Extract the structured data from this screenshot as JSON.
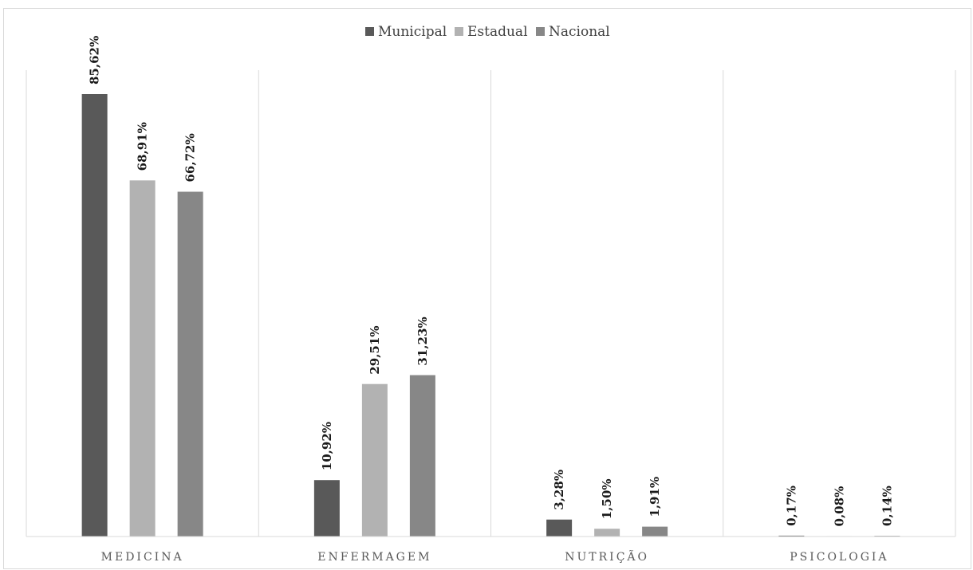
{
  "chart_data": {
    "type": "bar",
    "title": "",
    "xlabel": "",
    "ylabel": "",
    "ylim": [
      0,
      90
    ],
    "grid": false,
    "legend_position": "top",
    "categories": [
      "MEDICINA",
      "ENFERMAGEM",
      "NUTRIÇÃO",
      "PSICOLOGIA"
    ],
    "series": [
      {
        "name": "Municipal",
        "color": "#595959",
        "values": [
          85.62,
          10.92,
          3.28,
          0.17
        ],
        "labels": [
          "85,62%",
          "10,92%",
          "3,28%",
          "0,17%"
        ]
      },
      {
        "name": "Estadual",
        "color": "#b2b2b2",
        "values": [
          68.91,
          29.51,
          1.5,
          0.08
        ],
        "labels": [
          "68,91%",
          "29,51%",
          "1,50%",
          "0,08%"
        ]
      },
      {
        "name": "Nacional",
        "color": "#878787",
        "values": [
          66.72,
          31.23,
          1.91,
          0.14
        ],
        "labels": [
          "66,72%",
          "31,23%",
          "1,91%",
          "0,14%"
        ]
      }
    ]
  }
}
